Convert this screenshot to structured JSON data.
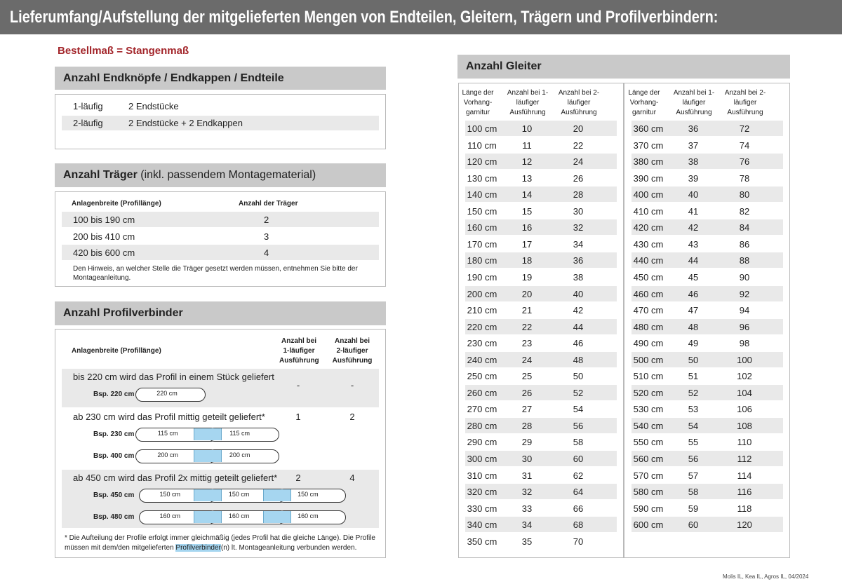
{
  "header": {
    "title": "Lieferumfang/Aufstellung der mitgelieferten Mengen von Endteilen, Gleitern, Trägern und Profilverbindern:"
  },
  "order_note": "Bestellmaß = Stangenmaß",
  "endteile": {
    "title": "Anzahl Endknöpfe / Endkappen / Endteile",
    "rows": [
      [
        "1-läufig",
        "2 Endstücke"
      ],
      [
        "2-läufig",
        "2 Endstücke + 2 Endkappen"
      ]
    ]
  },
  "traeger": {
    "title": "Anzahl Träger",
    "title_rest": "(inkl. passendem Montagematerial)",
    "headers": [
      "Anlagenbreite (Profillänge)",
      "Anzahl der Träger"
    ],
    "rows": [
      [
        "100 bis 190 cm",
        "2"
      ],
      [
        "200 bis 410 cm",
        "3"
      ],
      [
        "420 bis 600 cm",
        "4"
      ]
    ],
    "note": "Den Hinweis, an welcher Stelle die Träger gesetzt werden müssen, entnehmen Sie bitte der Montageanleitung."
  },
  "profilverbinder": {
    "title": "Anzahl Profilverbinder",
    "headers": [
      "Anlagenbreite (Profillänge)",
      "Anzahl bei 1-läufiger Ausführung",
      "Anzahl bei 2-läufiger Ausführung"
    ],
    "sections": [
      {
        "text": "bis 220 cm wird das Profil in einem Stück geliefert",
        "values": [
          "-",
          "-"
        ],
        "examples": [
          {
            "label": "Bsp. 220 cm",
            "segments": [
              "220 cm"
            ]
          }
        ]
      },
      {
        "text": "ab 230 cm wird das Profil mittig geteilt geliefert*",
        "values": [
          "1",
          "2"
        ],
        "examples": [
          {
            "label": "Bsp. 230 cm",
            "segments": [
              "115 cm",
              "115 cm"
            ]
          },
          {
            "label": "Bsp. 400 cm",
            "segments": [
              "200 cm",
              "200 cm"
            ]
          }
        ]
      },
      {
        "text": "ab 450 cm wird das Profil 2x mittig geteilt geliefert*",
        "values": [
          "2",
          "4"
        ],
        "examples": [
          {
            "label": "Bsp. 450 cm",
            "segments": [
              "150 cm",
              "150 cm",
              "150 cm"
            ]
          },
          {
            "label": "Bsp. 480 cm",
            "segments": [
              "160 cm",
              "160 cm",
              "160 cm"
            ]
          }
        ]
      }
    ],
    "note": [
      "* Die Aufteilung der Profile erfolgt immer gleichmäßig (jedes Profil hat die gleiche Länge). Die Profile müssen mit dem/den mitgelieferten ",
      "Profilverbinder",
      "(n) lt. Montageanleitung verbunden werden."
    ]
  },
  "gleiter": {
    "title": "Anzahl Gleiter",
    "headers": [
      "Länge der Vorhang-garnitur",
      "Anzahl bei 1-läufiger Ausführung",
      "Anzahl bei 2-läufiger Ausführung"
    ],
    "left": [
      [
        "100 cm",
        "10",
        "20"
      ],
      [
        "110 cm",
        "11",
        "22"
      ],
      [
        "120 cm",
        "12",
        "24"
      ],
      [
        "130 cm",
        "13",
        "26"
      ],
      [
        "140 cm",
        "14",
        "28"
      ],
      [
        "150 cm",
        "15",
        "30"
      ],
      [
        "160 cm",
        "16",
        "32"
      ],
      [
        "170 cm",
        "17",
        "34"
      ],
      [
        "180 cm",
        "18",
        "36"
      ],
      [
        "190 cm",
        "19",
        "38"
      ],
      [
        "200 cm",
        "20",
        "40"
      ],
      [
        "210 cm",
        "21",
        "42"
      ],
      [
        "220 cm",
        "22",
        "44"
      ],
      [
        "230 cm",
        "23",
        "46"
      ],
      [
        "240 cm",
        "24",
        "48"
      ],
      [
        "250 cm",
        "25",
        "50"
      ],
      [
        "260 cm",
        "26",
        "52"
      ],
      [
        "270 cm",
        "27",
        "54"
      ],
      [
        "280 cm",
        "28",
        "56"
      ],
      [
        "290 cm",
        "29",
        "58"
      ],
      [
        "300 cm",
        "30",
        "60"
      ],
      [
        "310 cm",
        "31",
        "62"
      ],
      [
        "320 cm",
        "32",
        "64"
      ],
      [
        "330 cm",
        "33",
        "66"
      ],
      [
        "340 cm",
        "34",
        "68"
      ],
      [
        "350 cm",
        "35",
        "70"
      ]
    ],
    "right": [
      [
        "360 cm",
        "36",
        "72"
      ],
      [
        "370 cm",
        "37",
        "74"
      ],
      [
        "380 cm",
        "38",
        "76"
      ],
      [
        "390 cm",
        "39",
        "78"
      ],
      [
        "400 cm",
        "40",
        "80"
      ],
      [
        "410 cm",
        "41",
        "82"
      ],
      [
        "420 cm",
        "42",
        "84"
      ],
      [
        "430 cm",
        "43",
        "86"
      ],
      [
        "440 cm",
        "44",
        "88"
      ],
      [
        "450 cm",
        "45",
        "90"
      ],
      [
        "460 cm",
        "46",
        "92"
      ],
      [
        "470 cm",
        "47",
        "94"
      ],
      [
        "480 cm",
        "48",
        "96"
      ],
      [
        "490 cm",
        "49",
        "98"
      ],
      [
        "500 cm",
        "50",
        "100"
      ],
      [
        "510 cm",
        "51",
        "102"
      ],
      [
        "520 cm",
        "52",
        "104"
      ],
      [
        "530 cm",
        "53",
        "106"
      ],
      [
        "540 cm",
        "54",
        "108"
      ],
      [
        "550 cm",
        "55",
        "110"
      ],
      [
        "560 cm",
        "56",
        "112"
      ],
      [
        "570 cm",
        "57",
        "114"
      ],
      [
        "580 cm",
        "58",
        "116"
      ],
      [
        "590 cm",
        "59",
        "118"
      ],
      [
        "600 cm",
        "60",
        "120"
      ]
    ]
  },
  "footer": "Molis IL, Kea IL, Agros IL, 04/2024"
}
